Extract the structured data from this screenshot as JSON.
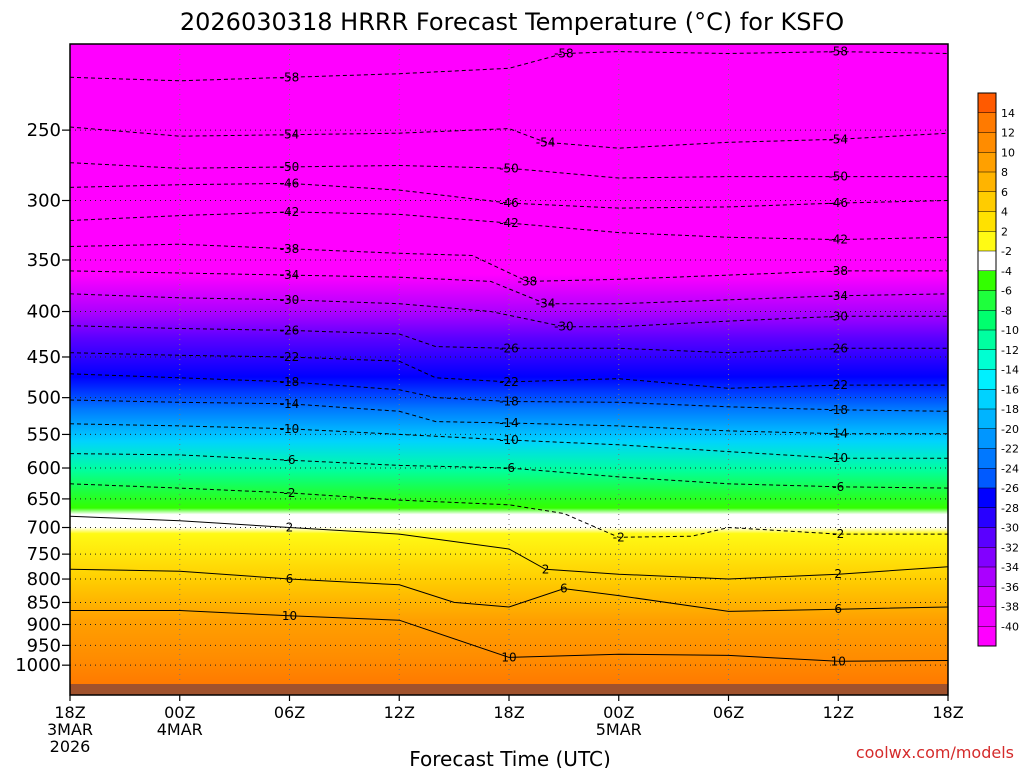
{
  "chart_data": {
    "type": "heatmap",
    "title": "2026030318 HRRR Forecast Temperature (°C) for KSFO",
    "xlabel": "Forecast Time (UTC)",
    "ylabel": "",
    "credit": "coolwx.com/models",
    "x_ticks": [
      {
        "hour": 0,
        "lines": [
          "18Z",
          "3MAR",
          "2026"
        ]
      },
      {
        "hour": 6,
        "lines": [
          "00Z",
          "4MAR"
        ]
      },
      {
        "hour": 12,
        "lines": [
          "06Z"
        ]
      },
      {
        "hour": 18,
        "lines": [
          "12Z"
        ]
      },
      {
        "hour": 24,
        "lines": [
          "18Z"
        ]
      },
      {
        "hour": 30,
        "lines": [
          "00Z",
          "5MAR"
        ]
      },
      {
        "hour": 36,
        "lines": [
          "06Z"
        ]
      },
      {
        "hour": 42,
        "lines": [
          "12Z"
        ]
      },
      {
        "hour": 48,
        "lines": [
          "18Z"
        ]
      }
    ],
    "x_range_hours": [
      0,
      48
    ],
    "y_axis_log_pressure": true,
    "y_range_hpa": [
      200,
      1050
    ],
    "y_ticks": [
      250,
      300,
      350,
      400,
      450,
      500,
      550,
      600,
      650,
      700,
      750,
      800,
      850,
      900,
      950,
      1000
    ],
    "grid": true,
    "colorbar": {
      "location": "right",
      "ticks": [
        "14",
        "12",
        "10",
        "8",
        "6",
        "4",
        "2",
        "-2",
        "-4",
        "-6",
        "-8",
        "-10",
        "-12",
        "-14",
        "-16",
        "-18",
        "-20",
        "-22",
        "-24",
        "-26",
        "-28",
        "-30",
        "-32",
        "-34",
        "-36",
        "-38",
        "-40"
      ],
      "colors": [
        "#ff5a00",
        "#ff7a00",
        "#ff8c00",
        "#ffa000",
        "#ffb400",
        "#ffcc00",
        "#ffe100",
        "#fffa14",
        "#ffffff",
        "#33ff00",
        "#1eff3c",
        "#00ff6e",
        "#00ffa0",
        "#00ffd2",
        "#00f0ff",
        "#00d2ff",
        "#00b4ff",
        "#0096ff",
        "#0078ff",
        "#005aff",
        "#0000ff",
        "#2800ff",
        "#5a00ff",
        "#8200ff",
        "#aa00ff",
        "#d200ff",
        "#f000ff",
        "#ff00ff"
      ]
    },
    "isotherms": [
      {
        "label": "-58",
        "points": [
          [
            0,
            218
          ],
          [
            6,
            220
          ],
          [
            12,
            218
          ],
          [
            18,
            216
          ],
          [
            24,
            213
          ],
          [
            27,
            205
          ],
          [
            30,
            204
          ],
          [
            36,
            205
          ],
          [
            42,
            204
          ],
          [
            48,
            205
          ]
        ]
      },
      {
        "label": "-54",
        "points": [
          [
            0,
            248
          ],
          [
            6,
            254
          ],
          [
            12,
            253
          ],
          [
            18,
            252
          ],
          [
            24,
            249
          ],
          [
            26,
            258
          ],
          [
            30,
            262
          ],
          [
            36,
            258
          ],
          [
            42,
            256
          ],
          [
            48,
            252
          ]
        ]
      },
      {
        "label": "-50",
        "points": [
          [
            0,
            272
          ],
          [
            6,
            276
          ],
          [
            12,
            275
          ],
          [
            18,
            274
          ],
          [
            24,
            276
          ],
          [
            30,
            283
          ],
          [
            36,
            282
          ],
          [
            42,
            282
          ],
          [
            48,
            282
          ]
        ]
      },
      {
        "label": "-46",
        "points": [
          [
            0,
            290
          ],
          [
            6,
            288
          ],
          [
            12,
            287
          ],
          [
            18,
            292
          ],
          [
            24,
            302
          ],
          [
            30,
            306
          ],
          [
            36,
            305
          ],
          [
            42,
            302
          ],
          [
            48,
            300
          ]
        ]
      },
      {
        "label": "-42",
        "points": [
          [
            0,
            316
          ],
          [
            6,
            312
          ],
          [
            12,
            309
          ],
          [
            18,
            311
          ],
          [
            24,
            318
          ],
          [
            30,
            326
          ],
          [
            36,
            330
          ],
          [
            42,
            332
          ],
          [
            48,
            330
          ]
        ]
      },
      {
        "label": "-38",
        "points": [
          [
            0,
            338
          ],
          [
            6,
            336
          ],
          [
            12,
            340
          ],
          [
            18,
            344
          ],
          [
            22,
            346
          ],
          [
            25,
            370
          ],
          [
            30,
            368
          ],
          [
            36,
            364
          ],
          [
            42,
            360
          ],
          [
            48,
            360
          ]
        ]
      },
      {
        "label": "-34",
        "points": [
          [
            0,
            360
          ],
          [
            6,
            362
          ],
          [
            12,
            364
          ],
          [
            18,
            366
          ],
          [
            23,
            370
          ],
          [
            26,
            392
          ],
          [
            30,
            392
          ],
          [
            36,
            388
          ],
          [
            42,
            384
          ],
          [
            48,
            382
          ]
        ]
      },
      {
        "label": "-30",
        "points": [
          [
            0,
            382
          ],
          [
            6,
            386
          ],
          [
            12,
            388
          ],
          [
            18,
            392
          ],
          [
            23,
            400
          ],
          [
            27,
            416
          ],
          [
            30,
            416
          ],
          [
            36,
            410
          ],
          [
            42,
            405
          ],
          [
            48,
            405
          ]
        ]
      },
      {
        "label": "-26",
        "points": [
          [
            0,
            415
          ],
          [
            6,
            418
          ],
          [
            12,
            420
          ],
          [
            18,
            424
          ],
          [
            20,
            438
          ],
          [
            24,
            440
          ],
          [
            30,
            440
          ],
          [
            36,
            445
          ],
          [
            42,
            440
          ],
          [
            48,
            440
          ]
        ]
      },
      {
        "label": "-22",
        "points": [
          [
            0,
            445
          ],
          [
            6,
            448
          ],
          [
            12,
            450
          ],
          [
            18,
            455
          ],
          [
            20,
            475
          ],
          [
            24,
            480
          ],
          [
            30,
            476
          ],
          [
            36,
            488
          ],
          [
            42,
            484
          ],
          [
            48,
            484
          ]
        ]
      },
      {
        "label": "-18",
        "points": [
          [
            0,
            470
          ],
          [
            6,
            475
          ],
          [
            12,
            480
          ],
          [
            18,
            490
          ],
          [
            20,
            500
          ],
          [
            24,
            505
          ],
          [
            30,
            506
          ],
          [
            36,
            512
          ],
          [
            42,
            516
          ],
          [
            48,
            518
          ]
        ]
      },
      {
        "label": "-14",
        "points": [
          [
            0,
            503
          ],
          [
            6,
            506
          ],
          [
            12,
            508
          ],
          [
            18,
            518
          ],
          [
            20,
            532
          ],
          [
            24,
            534
          ],
          [
            30,
            538
          ],
          [
            36,
            545
          ],
          [
            42,
            549
          ],
          [
            48,
            549
          ]
        ]
      },
      {
        "label": "-10",
        "points": [
          [
            0,
            535
          ],
          [
            6,
            538
          ],
          [
            12,
            542
          ],
          [
            18,
            550
          ],
          [
            24,
            558
          ],
          [
            30,
            565
          ],
          [
            36,
            575
          ],
          [
            42,
            585
          ],
          [
            48,
            585
          ]
        ]
      },
      {
        "label": "-6",
        "points": [
          [
            0,
            578
          ],
          [
            6,
            580
          ],
          [
            12,
            588
          ],
          [
            18,
            596
          ],
          [
            24,
            600
          ],
          [
            30,
            614
          ],
          [
            36,
            625
          ],
          [
            42,
            630
          ],
          [
            48,
            632
          ]
        ]
      },
      {
        "label": "-2",
        "points": [
          [
            0,
            625
          ],
          [
            6,
            632
          ],
          [
            12,
            640
          ],
          [
            18,
            652
          ],
          [
            24,
            660
          ],
          [
            27,
            675
          ],
          [
            30,
            718
          ],
          [
            34,
            716
          ],
          [
            36,
            700
          ],
          [
            42,
            712
          ],
          [
            48,
            712
          ]
        ]
      },
      {
        "label": "2",
        "points": [
          [
            0,
            680
          ],
          [
            6,
            688
          ],
          [
            12,
            700
          ],
          [
            18,
            712
          ],
          [
            24,
            740
          ],
          [
            26,
            780
          ],
          [
            30,
            790
          ],
          [
            36,
            800
          ],
          [
            42,
            790
          ],
          [
            48,
            775
          ]
        ]
      },
      {
        "label": "6",
        "points": [
          [
            0,
            780
          ],
          [
            6,
            784
          ],
          [
            12,
            800
          ],
          [
            18,
            812
          ],
          [
            21,
            850
          ],
          [
            24,
            860
          ],
          [
            27,
            820
          ],
          [
            30,
            835
          ],
          [
            36,
            870
          ],
          [
            42,
            865
          ],
          [
            48,
            860
          ]
        ]
      },
      {
        "label": "10",
        "points": [
          [
            0,
            868
          ],
          [
            6,
            868
          ],
          [
            12,
            880
          ],
          [
            18,
            890
          ],
          [
            24,
            980
          ],
          [
            30,
            972
          ],
          [
            36,
            975
          ],
          [
            42,
            990
          ],
          [
            48,
            988
          ]
        ]
      }
    ]
  }
}
